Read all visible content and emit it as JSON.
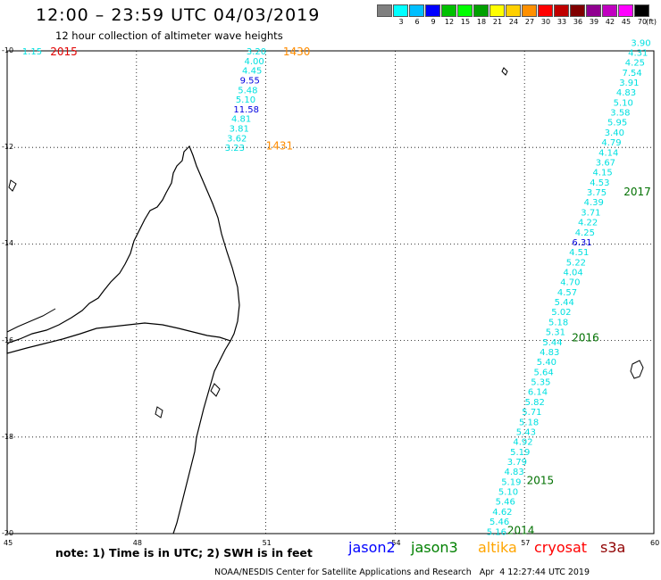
{
  "title": "12:00 – 23:59 UTC 04/03/2019",
  "subtitle": "12 hour collection of altimeter wave heights",
  "colorbar": {
    "unit": "(ft)",
    "bins": [
      {
        "color": "#808080",
        "label": ""
      },
      {
        "color": "#00ffff",
        "label": "3"
      },
      {
        "color": "#00bfff",
        "label": "6"
      },
      {
        "color": "#0000ff",
        "label": "9"
      },
      {
        "color": "#00c000",
        "label": "12"
      },
      {
        "color": "#00ff00",
        "label": "15"
      },
      {
        "color": "#00a000",
        "label": "18"
      },
      {
        "color": "#ffff00",
        "label": "21"
      },
      {
        "color": "#ffd000",
        "label": "24"
      },
      {
        "color": "#ff9000",
        "label": "27"
      },
      {
        "color": "#ff0000",
        "label": "30"
      },
      {
        "color": "#c00000",
        "label": "33"
      },
      {
        "color": "#800000",
        "label": "36"
      },
      {
        "color": "#900090",
        "label": "39"
      },
      {
        "color": "#c000c0",
        "label": "42"
      },
      {
        "color": "#ff00ff",
        "label": "45"
      },
      {
        "color": "#000000",
        "label": "70"
      }
    ]
  },
  "axes": {
    "lon_min": 45,
    "lon_max": 60,
    "lat_min": -20,
    "lat_max": -10,
    "lon_ticks": [
      "45",
      "48",
      "51",
      "54",
      "57",
      "60"
    ],
    "lat_ticks": [
      "-10",
      "-12",
      "-14",
      "-16",
      "-18",
      "-20"
    ]
  },
  "track_west": {
    "time_labels": [
      {
        "text": "2015",
        "lon": 46.0,
        "lat": -10.0,
        "color": "#e00000"
      },
      {
        "text": "1430",
        "lon": 51.4,
        "lat": -10.0,
        "color": "#ff8c00"
      },
      {
        "text": "1431",
        "lon": 51.0,
        "lat": -11.95,
        "color": "#ff8c00"
      }
    ],
    "points": [
      {
        "text": "1.15",
        "lon": 45.35,
        "lat": -10.0,
        "color": "#00e0e0"
      },
      {
        "text": "3.20",
        "lon": 50.55,
        "lat": -10.0,
        "color": "#00e0e0"
      },
      {
        "text": "4.00",
        "lon": 50.5,
        "lat": -10.2,
        "color": "#00e0e0"
      },
      {
        "text": "4.45",
        "lon": 50.45,
        "lat": -10.4,
        "color": "#00e0e0"
      },
      {
        "text": "9.55",
        "lon": 50.4,
        "lat": -10.6,
        "color": "#0000e0"
      },
      {
        "text": "5.48",
        "lon": 50.35,
        "lat": -10.8,
        "color": "#00e0e0"
      },
      {
        "text": "5.10",
        "lon": 50.3,
        "lat": -11.0,
        "color": "#00e0e0"
      },
      {
        "text": "11.58",
        "lon": 50.25,
        "lat": -11.2,
        "color": "#0000e0"
      },
      {
        "text": "4.81",
        "lon": 50.2,
        "lat": -11.4,
        "color": "#00e0e0"
      },
      {
        "text": "3.81",
        "lon": 50.15,
        "lat": -11.6,
        "color": "#00e0e0"
      },
      {
        "text": "3.62",
        "lon": 50.1,
        "lat": -11.8,
        "color": "#00e0e0"
      },
      {
        "text": "3.23",
        "lon": 50.05,
        "lat": -12.0,
        "color": "#00e0e0"
      }
    ]
  },
  "track_east": {
    "time_labels": [
      {
        "text": "2017",
        "lon": 59.3,
        "lat": -12.9,
        "color": "#007000"
      },
      {
        "text": "2016",
        "lon": 58.1,
        "lat": -15.92,
        "color": "#007000"
      },
      {
        "text": "2015",
        "lon": 57.05,
        "lat": -18.88,
        "color": "#007000"
      },
      {
        "text": "2014",
        "lon": 56.6,
        "lat": -19.92,
        "color": "#007000"
      }
    ],
    "values": [
      "3.90",
      "4.31",
      "4.25",
      "7.54",
      "3.91",
      "4.83",
      "5.10",
      "3.58",
      "5.95",
      "3.40",
      "4.79",
      "4.14",
      "3.67",
      "4.15",
      "4.53",
      "3.75",
      "4.39",
      "3.71",
      "4.22",
      "4.25",
      "6.31",
      "4.51",
      "5.22",
      "4.04",
      "4.70",
      "4.57",
      "5.44",
      "5.02",
      "5.18",
      "5.31",
      "5.44",
      "4.83",
      "5.40",
      "5.64",
      "5.35",
      "6.14",
      "5.82",
      "5.71",
      "5.18",
      "5.43",
      "4.92",
      "5.19",
      "3.79",
      "4.83",
      "5.19",
      "5.10",
      "5.46",
      "4.62",
      "5.46",
      "5.16"
    ],
    "colors": [
      "#00e0e0",
      "#00e0e0",
      "#00e0e0",
      "#00e0e0",
      "#00e0e0",
      "#00e0e0",
      "#00e0e0",
      "#00e0e0",
      "#00e0e0",
      "#00e0e0",
      "#00e0e0",
      "#00e0e0",
      "#00e0e0",
      "#00e0e0",
      "#00e0e0",
      "#00e0e0",
      "#00e0e0",
      "#00e0e0",
      "#00e0e0",
      "#00e0e0",
      "#0000e0",
      "#00e0e0",
      "#00e0e0",
      "#00e0e0",
      "#00e0e0",
      "#00e0e0",
      "#00e0e0",
      "#00e0e0",
      "#00e0e0",
      "#00e0e0",
      "#00e0e0",
      "#00e0e0",
      "#00e0e0",
      "#00e0e0",
      "#00e0e0",
      "#00e0e0",
      "#00e0e0",
      "#00e0e0",
      "#00e0e0",
      "#00e0e0",
      "#00e0e0",
      "#00e0e0",
      "#00e0e0",
      "#00e0e0",
      "#00e0e0",
      "#00e0e0",
      "#00e0e0",
      "#00e0e0",
      "#00e0e0",
      "#00e0e0"
    ],
    "lon_start": 59.7,
    "lat_start": -9.82,
    "lon_end": 56.35,
    "lat_end": -19.95
  },
  "footnote": "note: 1) Time is in UTC; 2) SWH is in feet",
  "satellites": [
    {
      "name": "jason2",
      "color": "#0000ff"
    },
    {
      "name": "jason3",
      "color": "#008000"
    },
    {
      "name": "altika",
      "color": "#ffa500"
    },
    {
      "name": "cryosat",
      "color": "#ff0000"
    },
    {
      "name": "s3a",
      "color": "#900000"
    }
  ],
  "credit": "NOAA/NESDIS Center for Satellite Applications and Research   Apr  4 12:27:44 UTC 2019"
}
